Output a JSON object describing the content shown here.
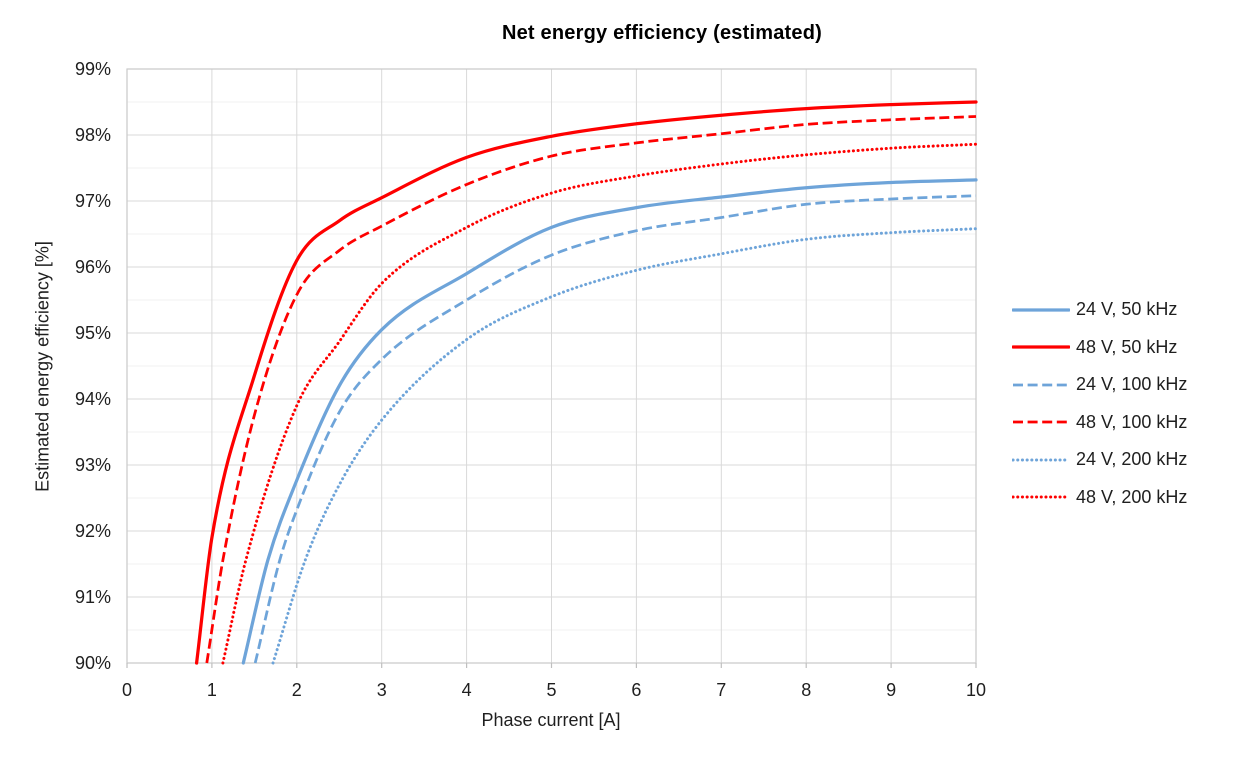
{
  "chart_data": {
    "type": "line",
    "title": "Net energy efficiency (estimated)",
    "xlabel": "Phase current [A]",
    "ylabel": "Estimated energy efficiency [%]",
    "xlim": [
      0,
      10
    ],
    "ylim": [
      90,
      99
    ],
    "x_ticks": [
      0,
      1,
      2,
      3,
      4,
      5,
      6,
      7,
      8,
      9,
      10
    ],
    "y_ticks": [
      {
        "value": 90,
        "label": "90%"
      },
      {
        "value": 91,
        "label": "91%"
      },
      {
        "value": 92,
        "label": "92%"
      },
      {
        "value": 93,
        "label": "93%"
      },
      {
        "value": 94,
        "label": "94%"
      },
      {
        "value": 95,
        "label": "95%"
      },
      {
        "value": 96,
        "label": "96%"
      },
      {
        "value": 97,
        "label": "97%"
      },
      {
        "value": 98,
        "label": "98%"
      },
      {
        "value": 99,
        "label": "99%"
      }
    ],
    "y_minor_ticks": [
      90.5,
      91.5,
      92.5,
      93.5,
      94.5,
      95.5,
      96.5,
      97.5,
      98.5
    ],
    "grid": {
      "major_color": "#d9d9d9",
      "minor_color": "#f2f2f2",
      "border_color": "#c9c9c9",
      "tick_color": "#bfbfbf",
      "text_color": "#1f1f1f"
    },
    "legend_position": "right",
    "series": [
      {
        "name": "24 V, 50 kHz",
        "color": "#6ea4d9",
        "dash": "solid",
        "points": [
          [
            1.37,
            90
          ],
          [
            1.66,
            91.56
          ],
          [
            2,
            92.77
          ],
          [
            2.5,
            94.2
          ],
          [
            3,
            95.05
          ],
          [
            4,
            95.9
          ],
          [
            5,
            96.6
          ],
          [
            6,
            96.9
          ],
          [
            7,
            97.06
          ],
          [
            8,
            97.2
          ],
          [
            9,
            97.28
          ],
          [
            10,
            97.32
          ]
        ]
      },
      {
        "name": "48 V, 50 kHz",
        "color": "#fe0000",
        "dash": "solid",
        "points": [
          [
            0.82,
            90
          ],
          [
            1.0,
            91.9
          ],
          [
            1.5,
            94.35
          ],
          [
            2,
            96.1
          ],
          [
            2.5,
            96.7
          ],
          [
            3,
            97.05
          ],
          [
            4,
            97.66
          ],
          [
            5,
            97.98
          ],
          [
            6,
            98.17
          ],
          [
            7,
            98.3
          ],
          [
            8,
            98.4
          ],
          [
            9,
            98.46
          ],
          [
            10,
            98.5
          ]
        ]
      },
      {
        "name": "24 V, 100 kHz",
        "color": "#6ea4d9",
        "dash": "dashed",
        "points": [
          [
            1.51,
            90
          ],
          [
            1.8,
            91.56
          ],
          [
            2,
            92.32
          ],
          [
            2.5,
            93.8
          ],
          [
            3,
            94.6
          ],
          [
            4,
            95.5
          ],
          [
            5,
            96.18
          ],
          [
            6,
            96.55
          ],
          [
            7,
            96.75
          ],
          [
            8,
            96.95
          ],
          [
            9,
            97.03
          ],
          [
            10,
            97.08
          ]
        ]
      },
      {
        "name": "48 V, 100 kHz",
        "color": "#fe0000",
        "dash": "dashed",
        "points": [
          [
            0.94,
            90
          ],
          [
            1.13,
            91.56
          ],
          [
            1.5,
            93.75
          ],
          [
            2,
            95.58
          ],
          [
            2.5,
            96.25
          ],
          [
            3,
            96.62
          ],
          [
            4,
            97.25
          ],
          [
            5,
            97.68
          ],
          [
            6,
            97.88
          ],
          [
            7,
            98.02
          ],
          [
            8,
            98.16
          ],
          [
            9,
            98.23
          ],
          [
            10,
            98.28
          ]
        ]
      },
      {
        "name": "24 V, 200 kHz",
        "color": "#6ea4d9",
        "dash": "dotted",
        "points": [
          [
            1.72,
            90
          ],
          [
            2.1,
            91.56
          ],
          [
            2.5,
            92.7
          ],
          [
            3,
            93.68
          ],
          [
            4,
            94.9
          ],
          [
            5,
            95.55
          ],
          [
            6,
            95.95
          ],
          [
            7,
            96.2
          ],
          [
            8,
            96.42
          ],
          [
            9,
            96.52
          ],
          [
            10,
            96.58
          ]
        ]
      },
      {
        "name": "48 V, 200 kHz",
        "color": "#fe0000",
        "dash": "dotted",
        "points": [
          [
            1.13,
            90
          ],
          [
            1.4,
            91.56
          ],
          [
            2,
            93.9
          ],
          [
            2.5,
            94.87
          ],
          [
            3,
            95.75
          ],
          [
            4,
            96.6
          ],
          [
            5,
            97.12
          ],
          [
            6,
            97.38
          ],
          [
            7,
            97.56
          ],
          [
            8,
            97.7
          ],
          [
            9,
            97.8
          ],
          [
            10,
            97.86
          ]
        ]
      }
    ]
  }
}
